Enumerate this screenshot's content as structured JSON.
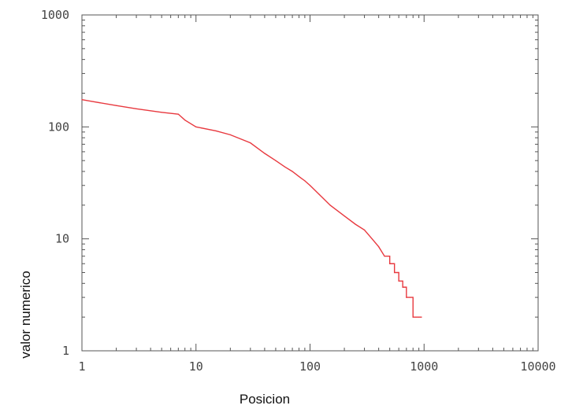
{
  "chart_data": {
    "type": "line",
    "title": "",
    "xlabel": "Posicion",
    "ylabel": "valor numerico",
    "xscale": "log",
    "yscale": "log",
    "xlim": [
      1,
      10000
    ],
    "ylim": [
      1,
      1000
    ],
    "grid": false,
    "legend": "none",
    "xticks": [
      {
        "value": 1,
        "label": "1"
      },
      {
        "value": 10,
        "label": "10"
      },
      {
        "value": 100,
        "label": "100"
      },
      {
        "value": 1000,
        "label": "1000"
      },
      {
        "value": 10000,
        "label": "10000"
      }
    ],
    "yticks": [
      {
        "value": 1,
        "label": "1"
      },
      {
        "value": 10,
        "label": "10"
      },
      {
        "value": 100,
        "label": "100"
      },
      {
        "value": 1000,
        "label": "1000"
      }
    ],
    "series": [
      {
        "color": "#e8393f",
        "x": [
          1,
          2,
          3,
          5,
          7,
          8,
          10,
          15,
          20,
          30,
          40,
          50,
          60,
          70,
          80,
          90,
          100,
          120,
          150,
          200,
          250,
          300,
          350,
          400,
          450,
          500,
          550,
          600,
          650,
          700,
          750,
          800,
          850,
          900,
          950
        ],
        "y": [
          175,
          155,
          145,
          135,
          130,
          115,
          100,
          92,
          85,
          72,
          58,
          50,
          44,
          40,
          36,
          33,
          30,
          25,
          20,
          16,
          13.5,
          12,
          10,
          8.5,
          7,
          6,
          5,
          4.2,
          3.7,
          3,
          3,
          2,
          2,
          2,
          2
        ]
      }
    ]
  }
}
